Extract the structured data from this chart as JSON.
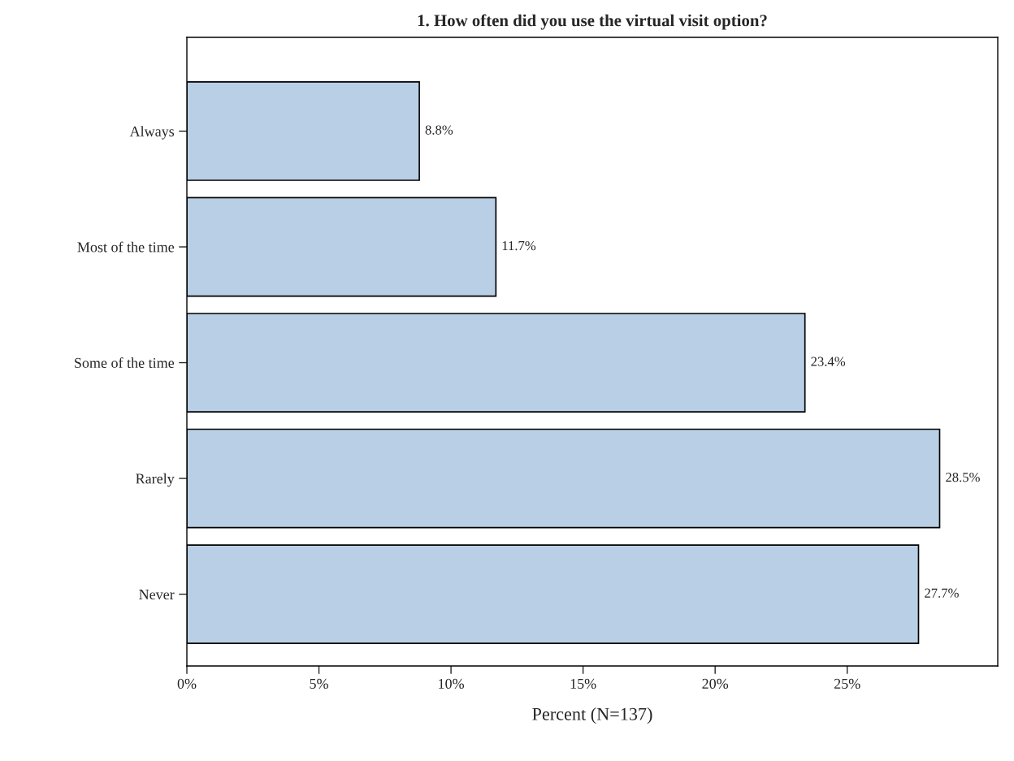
{
  "chart_data": {
    "type": "bar",
    "orientation": "horizontal",
    "title": "1. How often did you use the virtual visit option?",
    "xlabel": "Percent (N=137)",
    "categories": [
      "Always",
      "Most of the time",
      "Some of the time",
      "Rarely",
      "Never"
    ],
    "values": [
      8.8,
      11.7,
      23.4,
      28.5,
      27.7
    ],
    "value_labels": [
      "8.8%",
      "11.7%",
      "23.4%",
      "28.5%",
      "27.7%"
    ],
    "color": "#b9cfe6",
    "xlim": [
      0,
      30.7
    ],
    "xticks": [
      {
        "value": 0,
        "label": "0%"
      },
      {
        "value": 5,
        "label": "5%"
      },
      {
        "value": 10,
        "label": "10%"
      },
      {
        "value": 15,
        "label": "15%"
      },
      {
        "value": 20,
        "label": "20%"
      },
      {
        "value": 25,
        "label": "25%"
      }
    ],
    "grid": false,
    "legend": false
  }
}
